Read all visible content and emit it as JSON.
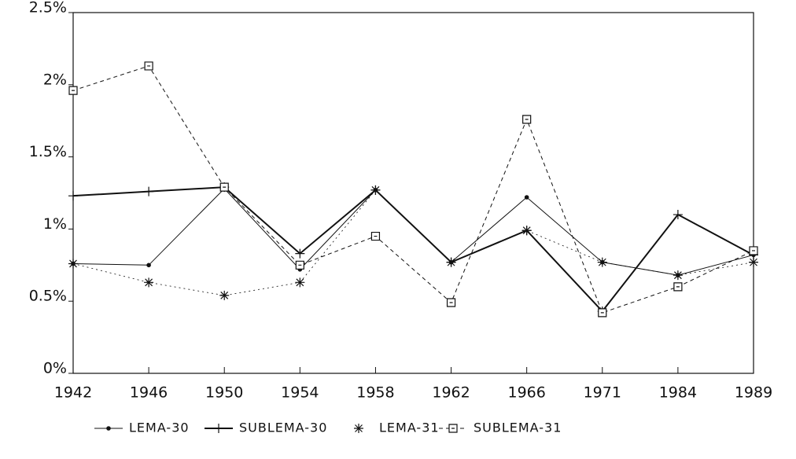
{
  "chart_data": {
    "type": "line",
    "categories": [
      "1942",
      "1946",
      "1950",
      "1954",
      "1958",
      "1962",
      "1966",
      "1971",
      "1984",
      "1989"
    ],
    "series": [
      {
        "name": "LEMA-30",
        "color": "#111111",
        "marker": "dot",
        "dash": "solid",
        "width": 1,
        "values": [
          0.76,
          0.75,
          1.28,
          0.72,
          1.27,
          0.77,
          1.22,
          0.77,
          0.68,
          0.82
        ]
      },
      {
        "name": "SUBLEMA-30",
        "color": "#111111",
        "marker": "plus",
        "dash": "solid",
        "width": 2,
        "values": [
          1.23,
          1.26,
          1.29,
          0.83,
          1.27,
          0.77,
          0.99,
          0.43,
          1.1,
          0.82
        ]
      },
      {
        "name": "LEMA-31",
        "color": "#111111",
        "marker": "star",
        "dash": "dotted",
        "width": 0.8,
        "values": [
          0.76,
          0.63,
          0.54,
          0.63,
          1.27,
          0.77,
          0.99,
          0.77,
          0.68,
          0.77
        ]
      },
      {
        "name": "SUBLEMA-31",
        "color": "#111111",
        "marker": "square",
        "dash": "dashed",
        "width": 1,
        "values": [
          1.96,
          2.13,
          1.29,
          0.75,
          0.95,
          0.49,
          1.76,
          0.42,
          0.6,
          0.85
        ]
      }
    ],
    "ylim": [
      0,
      2.5
    ],
    "yticks": [
      {
        "value": 0,
        "label": "0%"
      },
      {
        "value": 0.5,
        "label": "0.5%"
      },
      {
        "value": 1,
        "label": "1%"
      },
      {
        "value": 1.5,
        "label": "1.5%"
      },
      {
        "value": 2,
        "label": "2%"
      },
      {
        "value": 2.5,
        "label": "2.5%"
      }
    ],
    "grid": false
  }
}
